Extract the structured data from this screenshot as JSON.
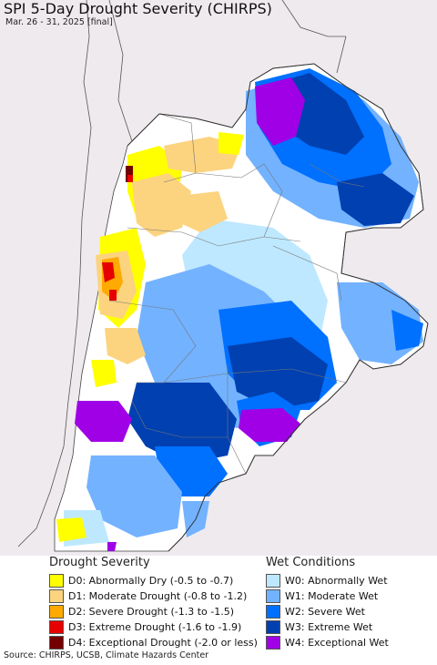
{
  "header": {
    "title": "SPI 5-Day Drought Severity (CHIRPS)",
    "subtitle": "Mar. 26 - 31, 2025 [final]"
  },
  "legend": {
    "drought": {
      "title": "Drought Severity",
      "items": [
        {
          "label": "D0: Abnormally Dry (-0.5 to -0.7)",
          "color": "#ffff00"
        },
        {
          "label": "D1: Moderate Drought (-0.8 to -1.2)",
          "color": "#fcd37f"
        },
        {
          "label": "D2: Severe Drought (-1.3 to -1.5)",
          "color": "#ffaa00"
        },
        {
          "label": "D3: Extreme Drought (-1.6 to -1.9)",
          "color": "#e60000"
        },
        {
          "label": "D4: Exceptional Drought (-2.0 or less)",
          "color": "#730000"
        }
      ]
    },
    "wet": {
      "title": "Wet Conditions",
      "items": [
        {
          "label": "W0: Abnormally Wet",
          "color": "#bee8ff"
        },
        {
          "label": "W1: Moderate Wet",
          "color": "#73b2ff"
        },
        {
          "label": "W2: Severe Wet",
          "color": "#0070ff"
        },
        {
          "label": "W3: Extreme Wet",
          "color": "#0040b0"
        },
        {
          "label": "W4: Exceptional Wet",
          "color": "#a000e6"
        }
      ]
    }
  },
  "footer": {
    "source": "Source: CHIRPS, UCSB, Climate Hazards Center"
  }
}
